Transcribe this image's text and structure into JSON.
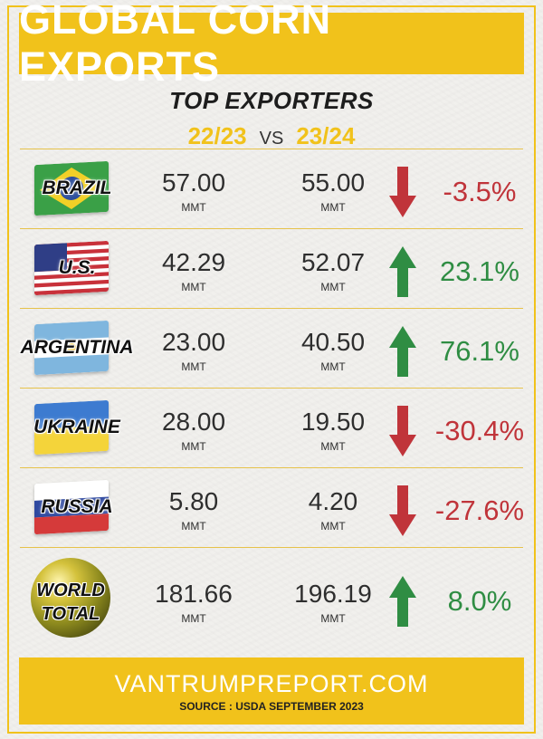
{
  "title": "GLOBAL CORN EXPORTS",
  "subtitle": "TOP EXPORTERS",
  "years": {
    "from": "22/23",
    "vs": "VS",
    "to": "23/24"
  },
  "unit": "MMT",
  "rows": [
    {
      "country": "BRAZIL",
      "v1": "57.00",
      "v2": "55.00",
      "pct": "-3.5%",
      "direction": "down",
      "flag_icon": "brazil-flag-icon"
    },
    {
      "country": "U.S.",
      "v1": "42.29",
      "v2": "52.07",
      "pct": "23.1%",
      "direction": "up",
      "flag_icon": "us-flag-icon"
    },
    {
      "country": "ARGENTINA",
      "v1": "23.00",
      "v2": "40.50",
      "pct": "76.1%",
      "direction": "up",
      "flag_icon": "argentina-flag-icon"
    },
    {
      "country": "UKRAINE",
      "v1": "28.00",
      "v2": "19.50",
      "pct": "-30.4%",
      "direction": "down",
      "flag_icon": "ukraine-flag-icon"
    },
    {
      "country": "RUSSIA",
      "v1": "5.80",
      "v2": "4.20",
      "pct": "-27.6%",
      "direction": "down",
      "flag_icon": "russia-flag-icon"
    }
  ],
  "world": {
    "label_line1": "WORLD",
    "label_line2": "TOTAL",
    "v1": "181.66",
    "v2": "196.19",
    "pct": "8.0%",
    "direction": "up",
    "icon": "globe-icon"
  },
  "footer": {
    "site": "VANTRUMPREPORT.COM",
    "source": "SOURCE : USDA SEPTEMBER 2023"
  },
  "colors": {
    "accent": "#f1c21b",
    "up": "#2f8d43",
    "down": "#c0343a"
  }
}
